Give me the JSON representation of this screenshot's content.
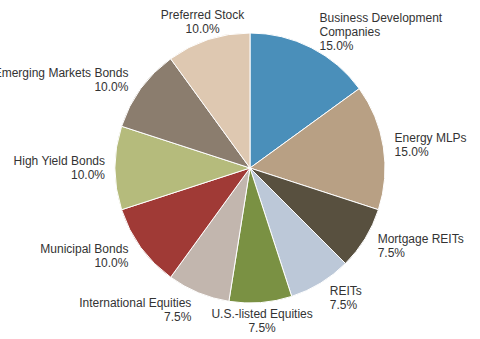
{
  "chart_data": {
    "type": "pie",
    "categories": [
      "Business Development Companies",
      "Energy MLPs",
      "Mortgage REITs",
      "REITs",
      "U.S.-listed Equities",
      "International Equities",
      "Municipal Bonds",
      "High Yield Bonds",
      "Emerging Markets Bonds",
      "Preferred Stock"
    ],
    "values": [
      15,
      15,
      7.5,
      7.5,
      7.5,
      7.5,
      10,
      10,
      10,
      10
    ],
    "value_labels": [
      "15.0%",
      "15.0%",
      "7.5%",
      "7.5%",
      "7.5%",
      "7.5%",
      "10.0%",
      "10.0%",
      "10.0%",
      "10.0%"
    ],
    "colors": [
      "#4a8fba",
      "#b8a084",
      "#58503f",
      "#bcc8d8",
      "#7a9143",
      "#c2b6ae",
      "#a03a36",
      "#b5bb7c",
      "#8b7d6e",
      "#dec8b1"
    ],
    "data_labels": true
  }
}
